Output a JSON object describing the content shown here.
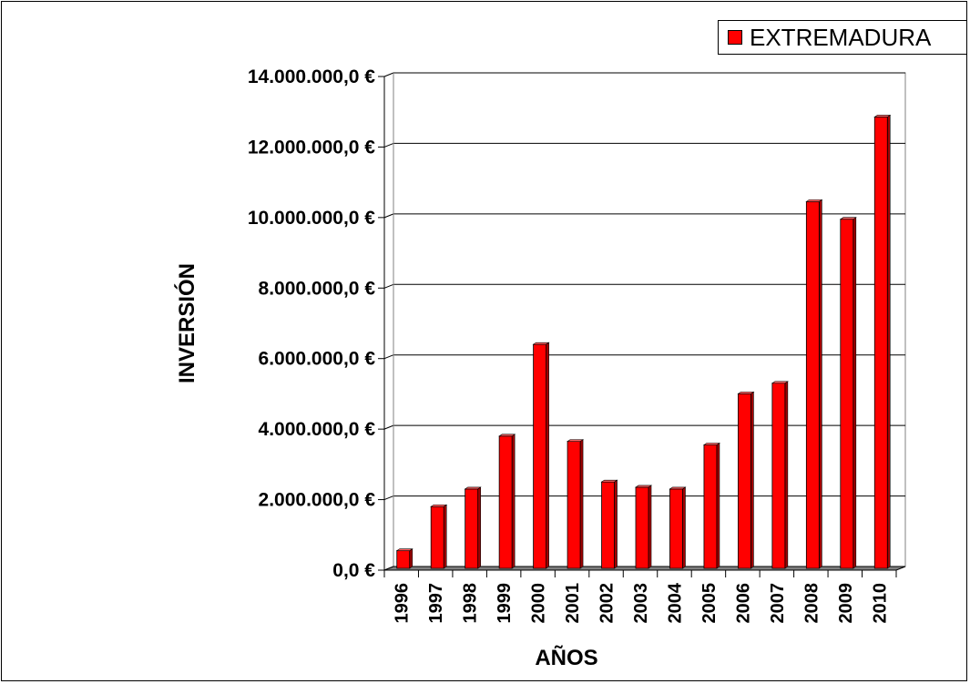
{
  "chart_data": {
    "type": "bar",
    "title": "",
    "xlabel": "AÑOS",
    "ylabel": "INVERSIÓN",
    "categories": [
      "1996",
      "1997",
      "1998",
      "1999",
      "2000",
      "2001",
      "2002",
      "2003",
      "2004",
      "2005",
      "2006",
      "2007",
      "2008",
      "2009",
      "2010"
    ],
    "series": [
      {
        "name": "EXTREMADURA",
        "values": [
          500000,
          1750000,
          2250000,
          3750000,
          6350000,
          3600000,
          2450000,
          2300000,
          2250000,
          3500000,
          4950000,
          5250000,
          10400000,
          9900000,
          12800000
        ],
        "color": "#ff0000"
      }
    ],
    "ylim": [
      0,
      14000000
    ],
    "y_ticks": [
      0,
      2000000,
      4000000,
      6000000,
      8000000,
      10000000,
      12000000,
      14000000
    ],
    "y_tick_labels": [
      "0,0 €",
      "2.000.000,0 €",
      "4.000.000,0 €",
      "6.000.000,0 €",
      "8.000.000,0 €",
      "10.000.000,0 €",
      "12.000.000,0 €",
      "14.000.000,0 €"
    ],
    "grid": true,
    "legend": "top-right",
    "style": "3d-column"
  }
}
